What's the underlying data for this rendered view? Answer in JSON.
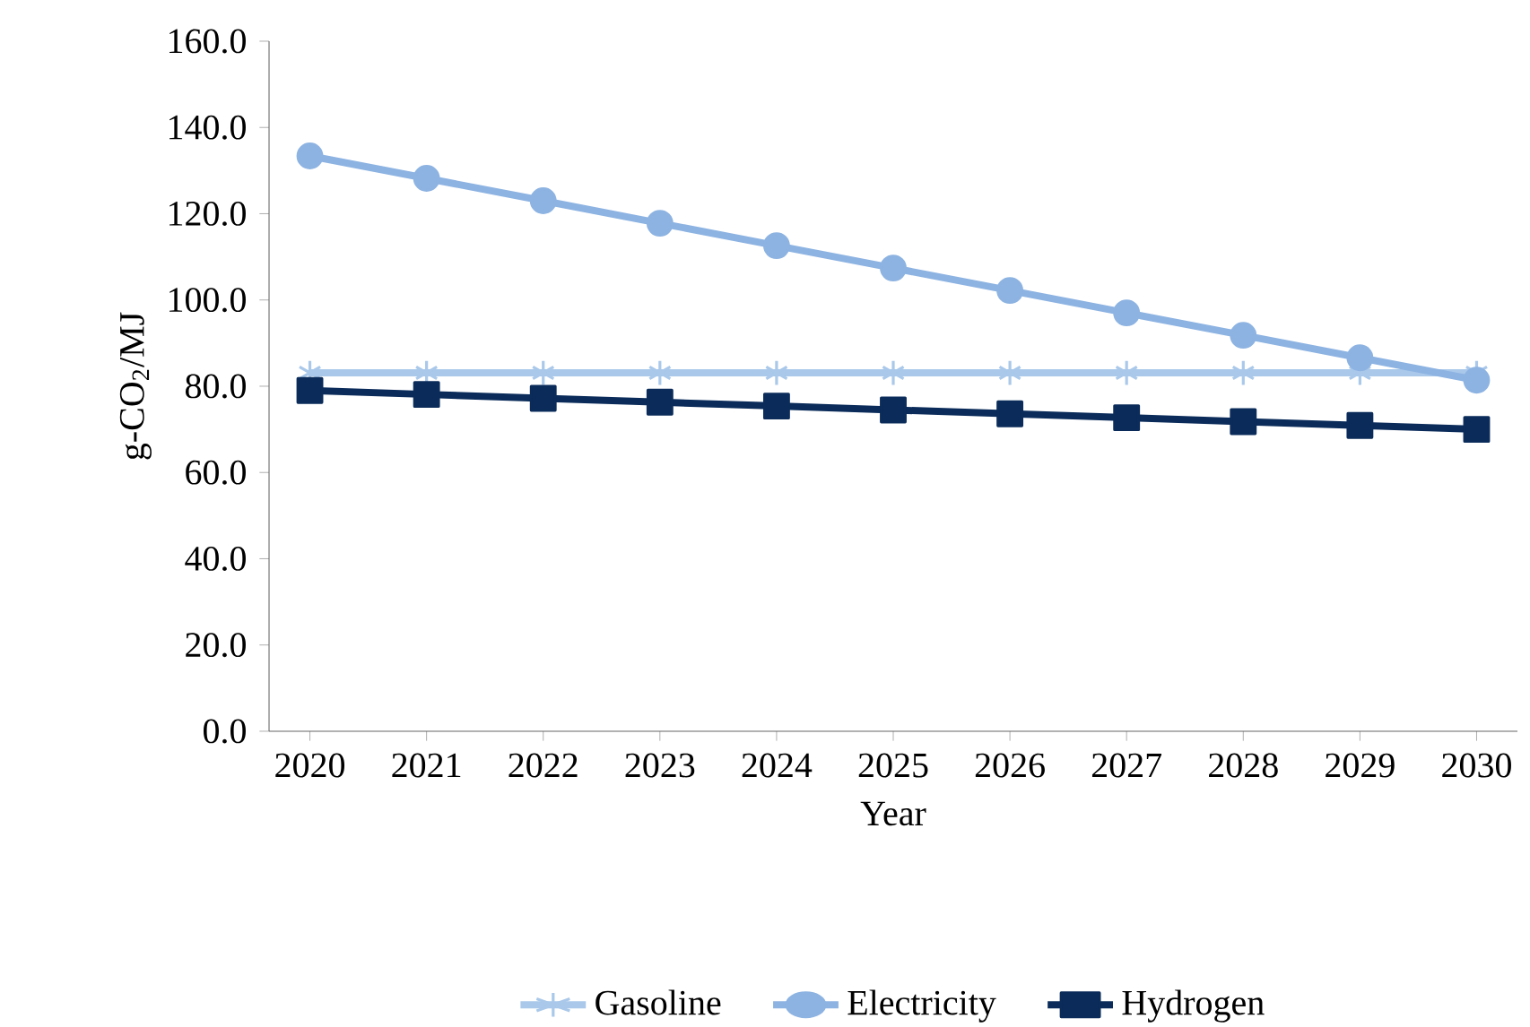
{
  "chart_data": {
    "type": "line",
    "xlabel": "Year",
    "ylabel": "g-CO$_{2}$/MJ",
    "categories": [
      "2020",
      "2021",
      "2022",
      "2023",
      "2024",
      "2025",
      "2026",
      "2027",
      "2028",
      "2029",
      "2030"
    ],
    "series": [
      {
        "name": "Gasoline",
        "color": "#a9c8ea",
        "marker": "cross",
        "values": [
          83.1,
          83.1,
          83.1,
          83.1,
          83.1,
          83.1,
          83.1,
          83.1,
          83.1,
          83.1,
          83.1
        ]
      },
      {
        "name": "Electricity",
        "color": "#8db3e2",
        "marker": "circle",
        "values": [
          133.4,
          128.2,
          123.0,
          117.8,
          112.6,
          107.4,
          102.2,
          97.0,
          91.8,
          86.6,
          81.4
        ]
      },
      {
        "name": "Hydrogen",
        "color": "#0b2c5a",
        "marker": "square",
        "values": [
          79.0,
          78.1,
          77.2,
          76.3,
          75.4,
          74.5,
          73.6,
          72.7,
          71.8,
          70.9,
          70.0
        ]
      }
    ],
    "ylim": [
      0,
      160
    ],
    "yticks": [
      {
        "value": 0,
        "label": "0.0"
      },
      {
        "value": 20,
        "label": "20.0"
      },
      {
        "value": 40,
        "label": "40.0"
      },
      {
        "value": 60,
        "label": "60.0"
      },
      {
        "value": 80,
        "label": "80.0"
      },
      {
        "value": 100,
        "label": "100.0"
      },
      {
        "value": 120,
        "label": "120.0"
      },
      {
        "value": 140,
        "label": "140.0"
      },
      {
        "value": 160,
        "label": "160.0"
      }
    ],
    "grid": false,
    "legend": "bottom",
    "line_style": "solid"
  }
}
